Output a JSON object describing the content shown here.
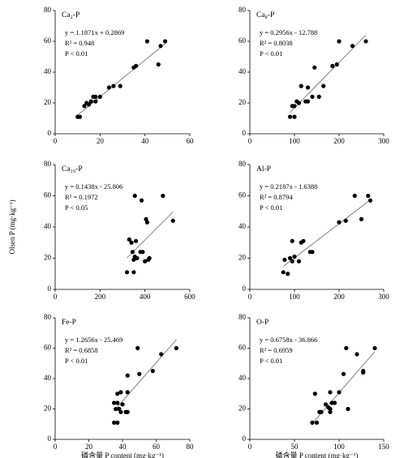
{
  "chart_data": [
    {
      "type": "scatter",
      "title": "Ca₂-P",
      "annotations": [
        "y = 1.1871x + 0.2869",
        "R² = 0.948",
        "P < 0.01"
      ],
      "trend": {
        "slope": 1.1871,
        "intercept": 0.2869
      },
      "x": [
        10,
        11,
        13,
        14,
        15,
        16,
        17,
        18,
        18,
        20,
        24,
        26,
        29,
        35,
        36,
        41,
        46,
        47,
        49
      ],
      "values": [
        11,
        11,
        18,
        20,
        19,
        21,
        24,
        21,
        24,
        24,
        30,
        31,
        31,
        43,
        44,
        60,
        45,
        57,
        60
      ],
      "xlim": [
        0,
        60
      ],
      "xticks": [
        0,
        20,
        40,
        60
      ],
      "ylim": [
        0,
        80
      ],
      "yticks": [
        0,
        20,
        40,
        60,
        80
      ],
      "color": "#000000"
    },
    {
      "type": "scatter",
      "title": "Ca₈-P",
      "annotations": [
        "y = 0.2956x - 12.788",
        "R² = 0.8038",
        "P < 0.01"
      ],
      "trend": {
        "slope": 0.2956,
        "intercept": -12.788
      },
      "x": [
        90,
        95,
        100,
        100,
        105,
        110,
        115,
        125,
        130,
        130,
        140,
        145,
        155,
        165,
        185,
        195,
        200,
        230,
        260
      ],
      "values": [
        11,
        18,
        11,
        18,
        21,
        20,
        31,
        21,
        30,
        21,
        24,
        43,
        24,
        31,
        44,
        45,
        60,
        57,
        60
      ],
      "xlim": [
        0,
        300
      ],
      "xticks": [
        0,
        100,
        200,
        300
      ],
      "ylim": [
        0,
        80
      ],
      "yticks": [
        0,
        20,
        40,
        60,
        80
      ],
      "color": "#000000"
    },
    {
      "type": "scatter",
      "title": "Ca₁₀-P",
      "annotations": [
        "y = 0.1438x - 25.806",
        "R² = 0.1972",
        "P < 0.05"
      ],
      "trend": {
        "slope": 0.1438,
        "intercept": -25.806
      },
      "ylabel": "Olsen P (mg·kg⁻¹)",
      "x": [
        320,
        330,
        340,
        345,
        350,
        350,
        355,
        355,
        360,
        365,
        380,
        385,
        390,
        400,
        405,
        410,
        415,
        420,
        480,
        525
      ],
      "values": [
        11,
        32,
        30,
        24,
        19,
        11,
        60,
        21,
        31,
        20,
        24,
        57,
        24,
        18,
        45,
        43,
        19,
        20,
        60,
        44
      ],
      "xlim": [
        0,
        600
      ],
      "xticks": [
        0,
        200,
        400,
        600
      ],
      "ylim": [
        0,
        80
      ],
      "yticks": [
        0,
        20,
        40,
        60,
        80
      ],
      "color": "#000000"
    },
    {
      "type": "scatter",
      "title": "Al-P",
      "annotations": [
        "y = 0.2187x - 1.6388",
        "R² = 0.8794",
        "P < 0.01"
      ],
      "trend": {
        "slope": 0.2187,
        "intercept": -1.6388
      },
      "x": [
        75,
        78,
        85,
        90,
        95,
        95,
        100,
        110,
        115,
        120,
        135,
        140,
        200,
        215,
        235,
        250,
        265,
        270
      ],
      "values": [
        11,
        19,
        10,
        20,
        31,
        18,
        21,
        18,
        30,
        31,
        24,
        24,
        43,
        44,
        60,
        45,
        60,
        57
      ],
      "xlim": [
        0,
        300
      ],
      "xticks": [
        0,
        100,
        200,
        300
      ],
      "ylim": [
        0,
        80
      ],
      "yticks": [
        0,
        20,
        40,
        60,
        80
      ],
      "color": "#000000"
    },
    {
      "type": "scatter",
      "title": "Fe-P",
      "annotations": [
        "y = 1.2656x - 25.469",
        "R² = 0.6858",
        "P < 0.01"
      ],
      "trend": {
        "slope": 1.2656,
        "intercept": -25.469
      },
      "xlabel": "磷含量 P content (mg·kg⁻¹)",
      "x": [
        35,
        35,
        36,
        37,
        37,
        37,
        38,
        39,
        39,
        40,
        42,
        43,
        43,
        43,
        49,
        50,
        58,
        63,
        72
      ],
      "values": [
        24,
        11,
        20,
        30,
        24,
        11,
        20,
        18,
        31,
        23,
        18,
        31,
        42,
        18,
        60,
        43,
        45,
        56,
        60
      ],
      "xlim": [
        0,
        80
      ],
      "xticks": [
        0,
        20,
        40,
        60,
        80
      ],
      "ylim": [
        0,
        80
      ],
      "yticks": [
        0,
        20,
        40,
        60,
        80
      ],
      "color": "#000000"
    },
    {
      "type": "scatter",
      "title": "O-P",
      "annotations": [
        "y = 0.6758x - 36.866",
        "R² = 0.6959",
        "P < 0.01"
      ],
      "trend": {
        "slope": 0.6758,
        "intercept": -36.866
      },
      "xlabel": "磷含量 P content (mg·kg⁻¹)",
      "x": [
        70,
        73,
        75,
        78,
        80,
        85,
        88,
        90,
        90,
        90,
        92,
        95,
        100,
        105,
        108,
        110,
        120,
        127,
        127,
        140
      ],
      "values": [
        11,
        30,
        11,
        18,
        18,
        23,
        21,
        20,
        31,
        18,
        24,
        24,
        31,
        43,
        60,
        20,
        56,
        44,
        45,
        60
      ],
      "xlim": [
        0,
        150
      ],
      "xticks": [
        0,
        50,
        100,
        150
      ],
      "ylim": [
        0,
        80
      ],
      "yticks": [
        0,
        20,
        40,
        60,
        80
      ],
      "color": "#000000"
    }
  ]
}
